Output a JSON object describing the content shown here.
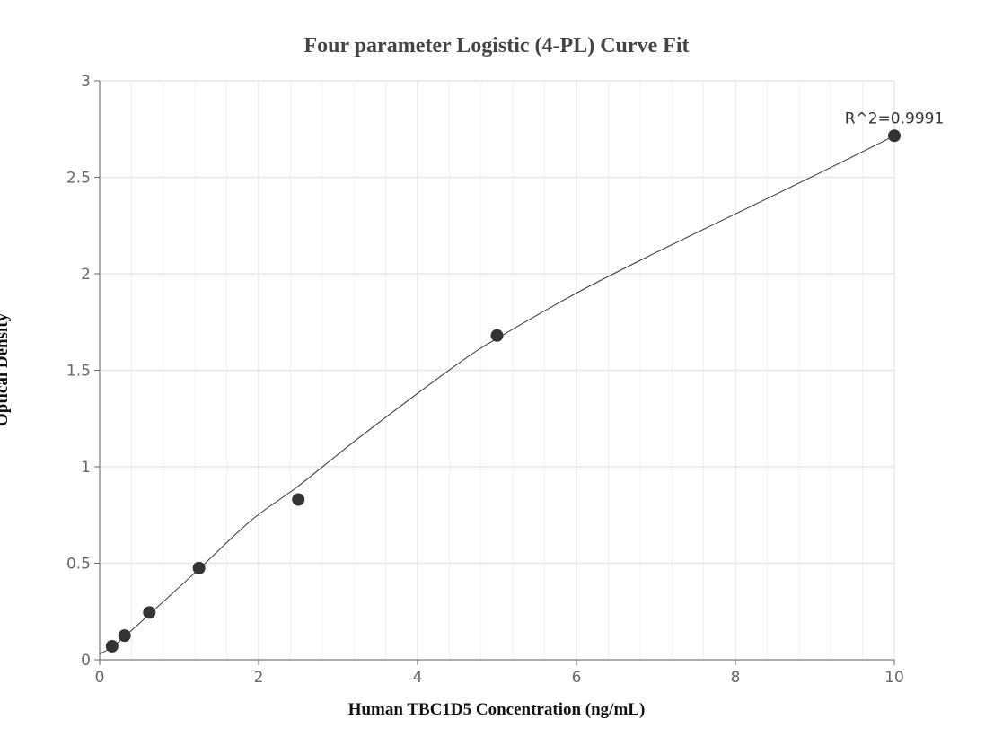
{
  "chart_data": {
    "type": "scatter",
    "title": "Four parameter Logistic (4-PL) Curve Fit",
    "xlabel": "Human TBC1D5 Concentration (ng/mL)",
    "ylabel": "Optical Density",
    "xlim": [
      0,
      10
    ],
    "ylim": [
      0,
      3
    ],
    "x_ticks": [
      "0",
      "2",
      "4",
      "6",
      "8",
      "10"
    ],
    "y_ticks": [
      "0",
      "0.5",
      "1",
      "1.5",
      "2",
      "2.5",
      "3"
    ],
    "grid": true,
    "series": [
      {
        "x": [
          0.156,
          0.313,
          0.625,
          1.25,
          2.5,
          5,
          10
        ],
        "y": [
          0.07,
          0.125,
          0.245,
          0.475,
          0.83,
          1.68,
          2.715
        ]
      }
    ],
    "fit_curve": {
      "x": [
        0,
        0.156,
        0.313,
        0.625,
        1.25,
        1.9,
        2.5,
        3.2,
        4.0,
        4.6,
        5.0,
        6.0,
        7.0,
        8.0,
        9.0,
        10.0
      ],
      "y": [
        0.03,
        0.065,
        0.12,
        0.235,
        0.47,
        0.72,
        0.9,
        1.13,
        1.38,
        1.56,
        1.665,
        1.9,
        2.11,
        2.31,
        2.51,
        2.715
      ]
    },
    "annotation": "R^2=0.9991",
    "colors": {
      "marker": "#333333",
      "curve": "#333333",
      "grid": "#e3e6ee",
      "axis": "#666666"
    }
  }
}
